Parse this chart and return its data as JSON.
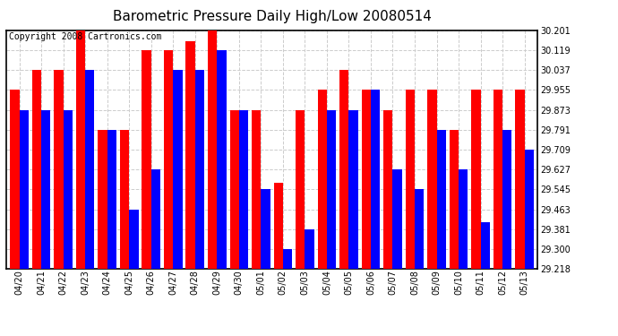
{
  "title": "Barometric Pressure Daily High/Low 20080514",
  "copyright": "Copyright 2008 Cartronics.com",
  "dates": [
    "04/20",
    "04/21",
    "04/22",
    "04/23",
    "04/24",
    "04/25",
    "04/26",
    "04/27",
    "04/28",
    "04/29",
    "04/30",
    "05/01",
    "05/02",
    "05/03",
    "05/04",
    "05/05",
    "05/06",
    "05/07",
    "05/08",
    "05/09",
    "05/10",
    "05/11",
    "05/12",
    "05/13"
  ],
  "highs": [
    29.955,
    30.037,
    30.037,
    30.201,
    29.791,
    29.791,
    30.119,
    30.119,
    30.155,
    30.201,
    29.873,
    29.873,
    29.573,
    29.873,
    29.955,
    30.037,
    29.955,
    29.873,
    29.955,
    29.955,
    29.791,
    29.955,
    29.955,
    29.955
  ],
  "lows": [
    29.873,
    29.873,
    29.873,
    30.037,
    29.791,
    29.463,
    29.627,
    30.037,
    30.037,
    30.119,
    29.873,
    29.545,
    29.3,
    29.381,
    29.873,
    29.873,
    29.955,
    29.627,
    29.545,
    29.791,
    29.627,
    29.409,
    29.791,
    29.709
  ],
  "yticks": [
    29.218,
    29.3,
    29.381,
    29.463,
    29.545,
    29.627,
    29.709,
    29.791,
    29.873,
    29.955,
    30.037,
    30.119,
    30.201
  ],
  "ymin": 29.218,
  "ymax": 30.201,
  "high_color": "#ff0000",
  "low_color": "#0000ff",
  "bg_color": "#ffffff",
  "plot_bg_color": "#ffffff",
  "grid_color": "#cccccc",
  "title_fontsize": 11,
  "copyright_fontsize": 7
}
